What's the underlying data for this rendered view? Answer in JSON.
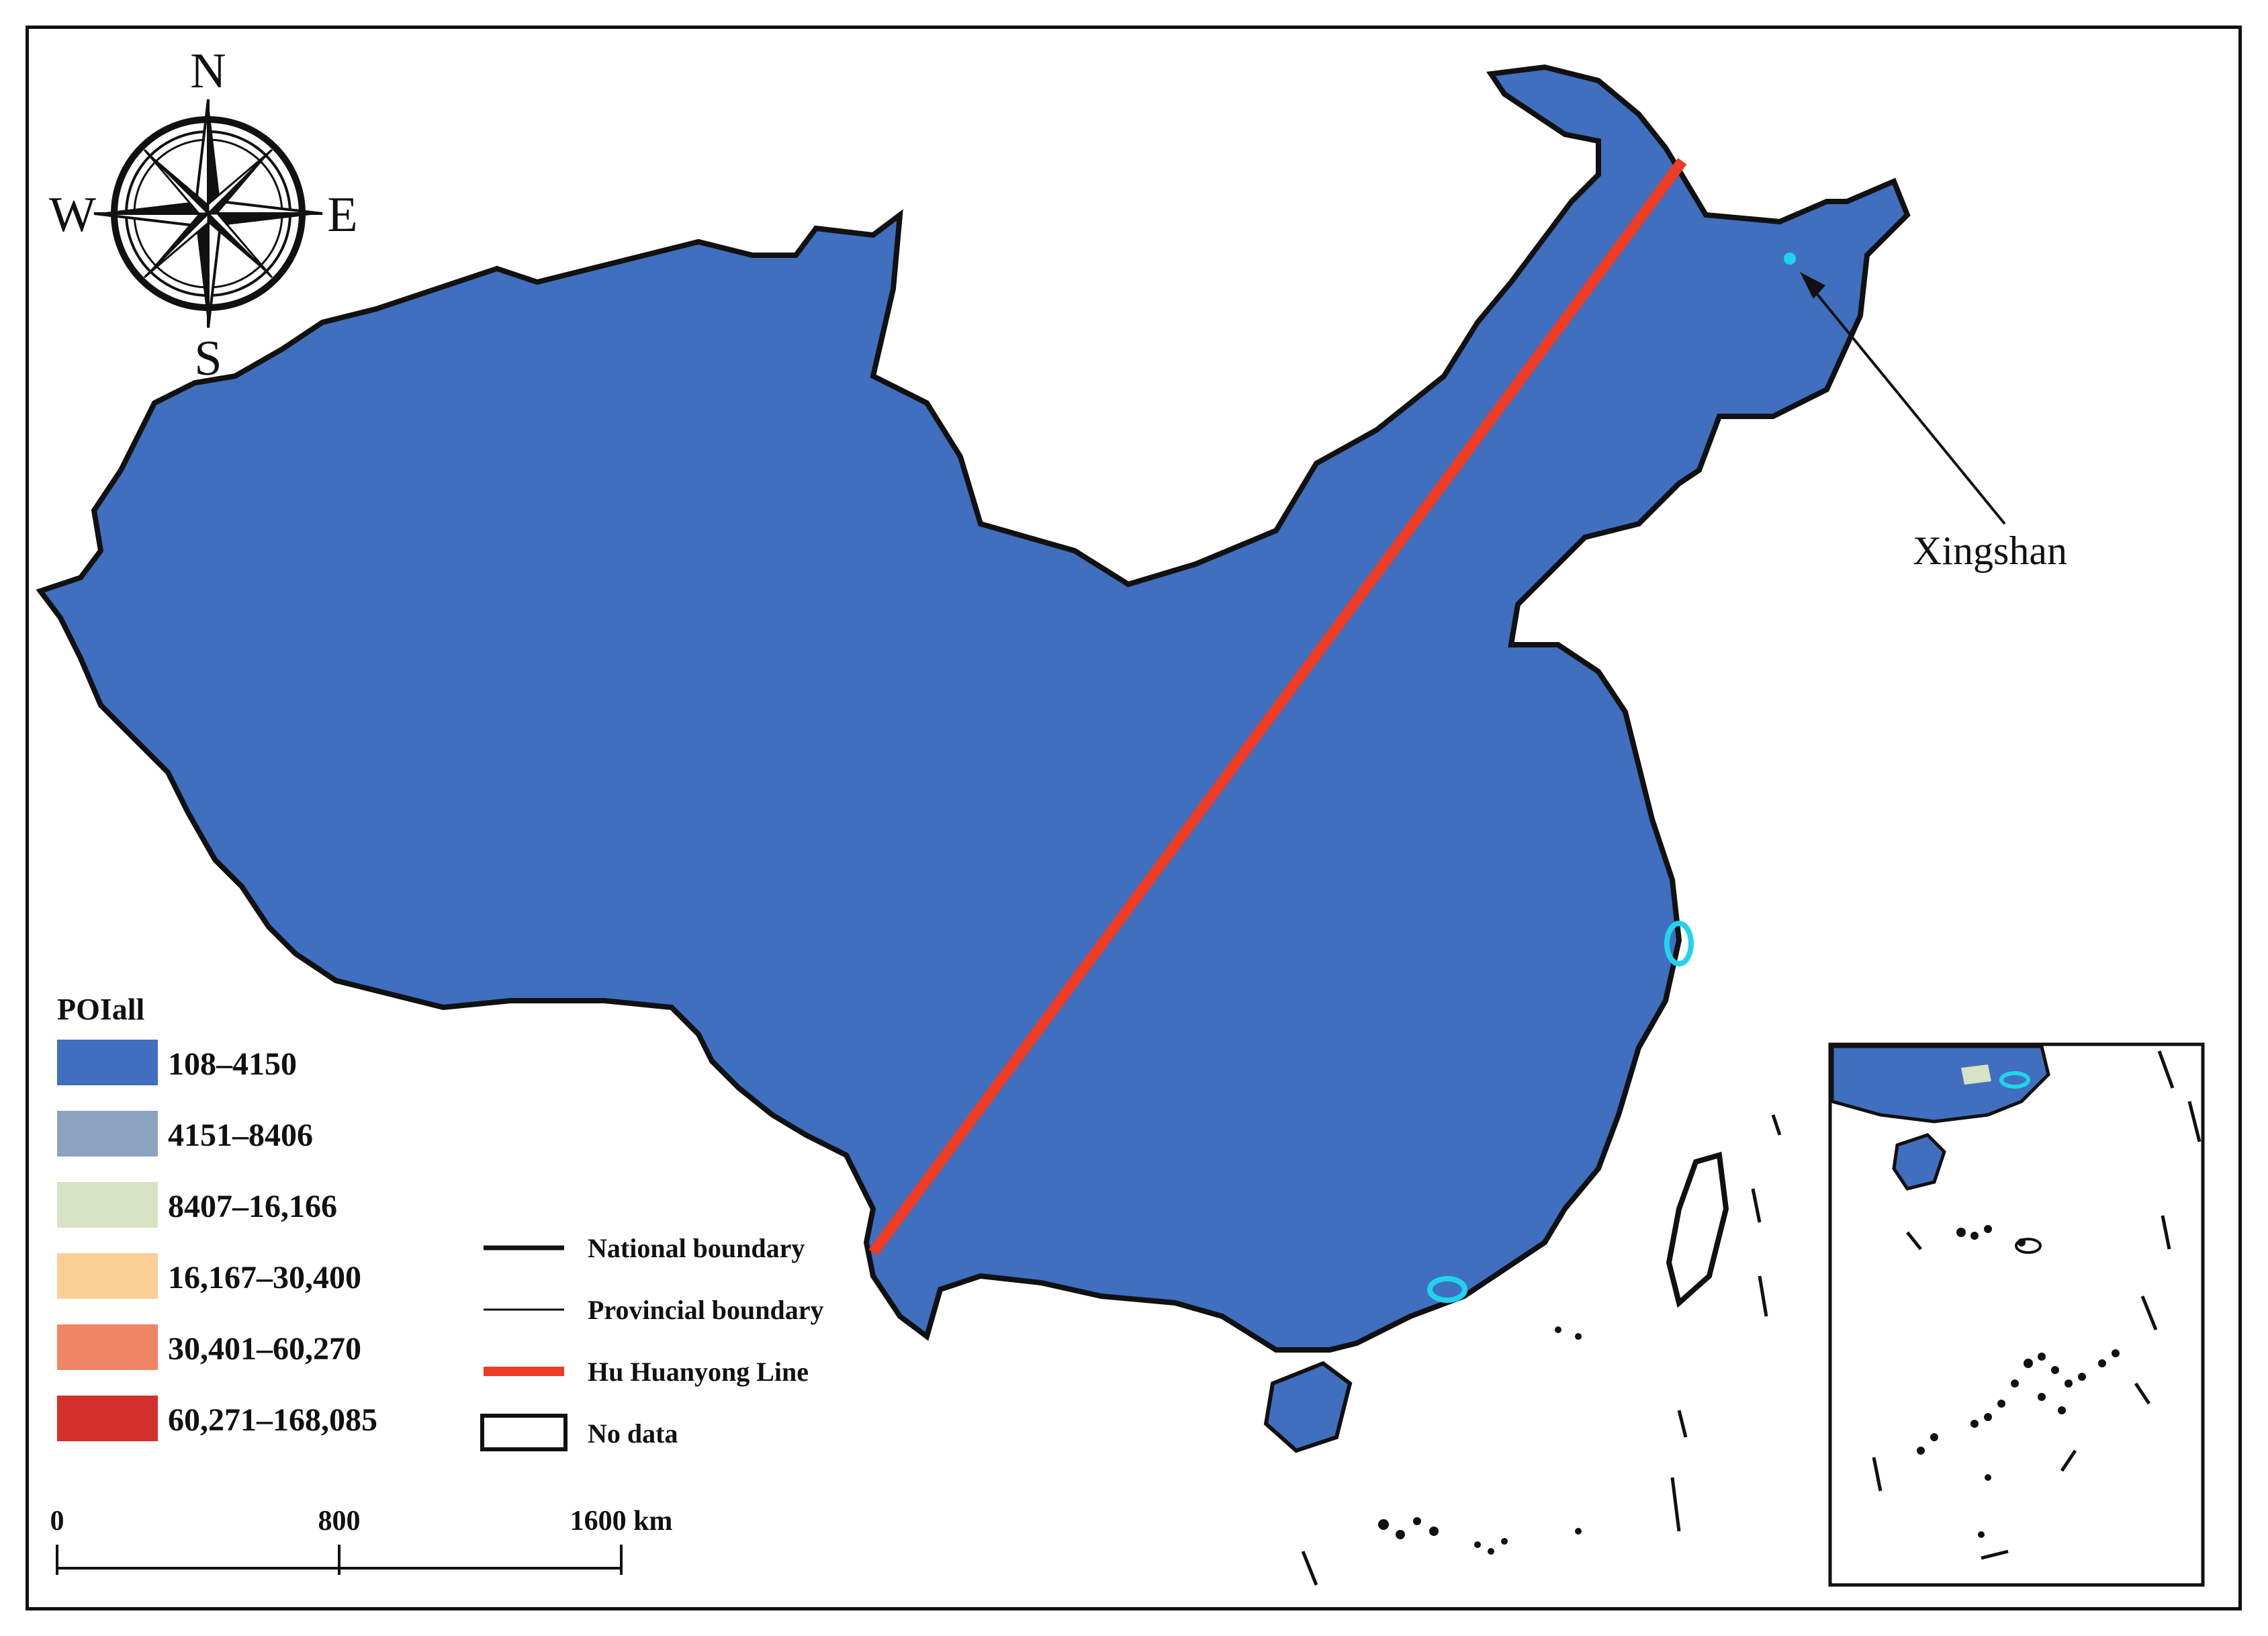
{
  "compass": {
    "north": "N",
    "south": "S",
    "east": "E",
    "west": "W"
  },
  "legend": {
    "title": "POIall",
    "classes": [
      {
        "label": "108–4150",
        "color": "#3f6fbe"
      },
      {
        "label": "4151–8406",
        "color": "#8ca3bf"
      },
      {
        "label": "8407–16,166",
        "color": "#d8e2c4"
      },
      {
        "label": "16,167–30,400",
        "color": "#f9cf96"
      },
      {
        "label": "30,401–60,270",
        "color": "#ef8663"
      },
      {
        "label": "60,271–168,085",
        "color": "#d32f2b"
      }
    ]
  },
  "boundary_legend": {
    "national": "National boundary",
    "provincial": "Provincial boundary",
    "hu_line": "Hu Huanyong Line",
    "no_data": "No data",
    "hu_line_color": "#ee3b24"
  },
  "scale_bar": {
    "labels": [
      "0",
      "800",
      "1600 km"
    ]
  },
  "annotation": {
    "label": "Xingshan",
    "marker_color": "#22d3ee"
  },
  "colors": {
    "frame": "#111111",
    "highlight": "#22d3ee"
  }
}
